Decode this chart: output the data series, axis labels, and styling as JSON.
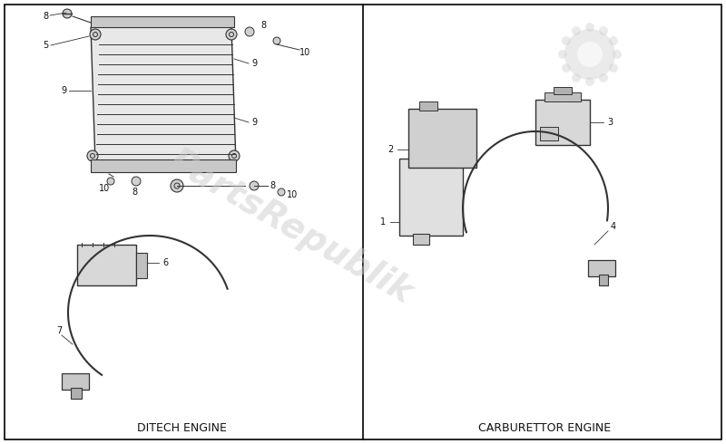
{
  "title": "",
  "bg_color": "#ffffff",
  "border_color": "#000000",
  "line_color": "#333333",
  "part_color": "#555555",
  "watermark_color": "#cccccc",
  "watermark_text": "PartsRepublik",
  "label_left": "DITECH ENGINE",
  "label_right": "CARBURETTOR ENGINE",
  "figsize": [
    8.0,
    4.9
  ],
  "dpi": 100
}
